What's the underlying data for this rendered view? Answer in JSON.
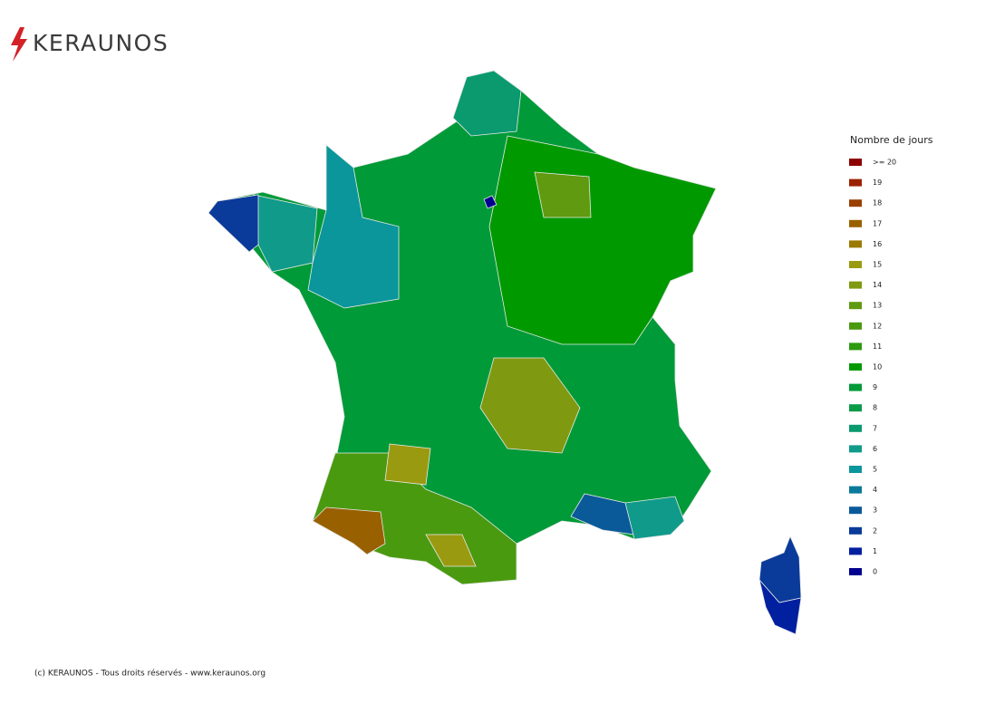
{
  "header": {
    "logo": "KERAUNOS"
  },
  "legend": {
    "title": "Nombre de jours",
    "items": [
      {
        "label": ">= 20",
        "color": "#8b0000"
      },
      {
        "label": "19",
        "color": "#9b2200"
      },
      {
        "label": "18",
        "color": "#994000"
      },
      {
        "label": "17",
        "color": "#996000"
      },
      {
        "label": "16",
        "color": "#9a7a00"
      },
      {
        "label": "15",
        "color": "#9a9a10"
      },
      {
        "label": "14",
        "color": "#7f9a10"
      },
      {
        "label": "13",
        "color": "#5f9a10"
      },
      {
        "label": "12",
        "color": "#4a9a10"
      },
      {
        "label": "11",
        "color": "#2e9a10"
      },
      {
        "label": "10",
        "color": "#009a00"
      },
      {
        "label": "9",
        "color": "#009a38"
      },
      {
        "label": "8",
        "color": "#0a9a4a"
      },
      {
        "label": "7",
        "color": "#0a9a6e"
      },
      {
        "label": "6",
        "color": "#109a8a"
      },
      {
        "label": "5",
        "color": "#0a969a"
      },
      {
        "label": "4",
        "color": "#0a7a9a"
      },
      {
        "label": "3",
        "color": "#0a5a9a"
      },
      {
        "label": "2",
        "color": "#0a3a9a"
      },
      {
        "label": "1",
        "color": "#0020a0"
      },
      {
        "label": "0",
        "color": "#000090"
      }
    ]
  },
  "footer": {
    "text": "(c) KERAUNOS - Tous droits réservés - www.keraunos.org"
  }
}
